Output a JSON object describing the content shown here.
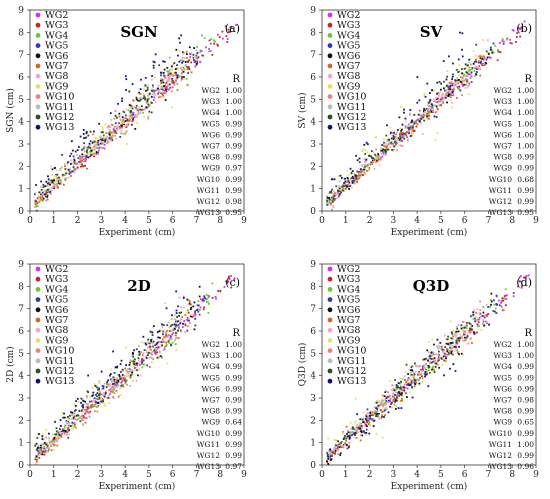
{
  "series_names": [
    "WG2",
    "WG3",
    "WG4",
    "WG5",
    "WG6",
    "WG7",
    "WG8",
    "WG9",
    "WG10",
    "WG11",
    "WG12",
    "WG13"
  ],
  "series_colors": [
    "#cc33ff",
    "#cc2222",
    "#66cc22",
    "#2a3aa8",
    "#111111",
    "#d2691e",
    "#f4a6c8",
    "#e6e066",
    "#f08080",
    "#bbbbbb",
    "#225522",
    "#141470"
  ],
  "r_header": "R",
  "chart_data": [
    {
      "type": "scatter",
      "title": "SGN",
      "panel_label": "(a)",
      "xlabel": "Experiment (cm)",
      "ylabel": "SGN (cm)",
      "xlim": [
        0,
        9
      ],
      "ylim": [
        0,
        9
      ],
      "xticks": [
        "0",
        "1",
        "2",
        "3",
        "4",
        "5",
        "6",
        "7",
        "8",
        "9"
      ],
      "yticks": [
        "0",
        "1",
        "2",
        "3",
        "4",
        "5",
        "6",
        "7",
        "8",
        "9"
      ],
      "r_values": [
        "1.00",
        "1.00",
        "1.00",
        "0.99",
        "0.99",
        "0.99",
        "0.99",
        "0.97",
        "0.99",
        "0.99",
        "0.98",
        "0.95"
      ],
      "series_params": [
        {
          "name": "WG2",
          "xmin": 0.2,
          "xmax": 8.7,
          "slope": 0.96,
          "offset": 0.1,
          "noise": 0.15
        },
        {
          "name": "WG3",
          "xmin": 0.2,
          "xmax": 8.5,
          "slope": 0.97,
          "offset": 0.0,
          "noise": 0.15
        },
        {
          "name": "WG4",
          "xmin": 0.2,
          "xmax": 7.8,
          "slope": 0.97,
          "offset": 0.1,
          "noise": 0.2
        },
        {
          "name": "WG5",
          "xmin": 0.2,
          "xmax": 7.5,
          "slope": 0.97,
          "offset": 0.2,
          "noise": 0.25
        },
        {
          "name": "WG6",
          "xmin": 0.2,
          "xmax": 7.2,
          "slope": 0.98,
          "offset": 0.2,
          "noise": 0.3
        },
        {
          "name": "WG7",
          "xmin": 0.2,
          "xmax": 7.0,
          "slope": 0.98,
          "offset": 0.1,
          "noise": 0.3
        },
        {
          "name": "WG8",
          "xmin": 0.2,
          "xmax": 7.0,
          "slope": 0.97,
          "offset": 0.2,
          "noise": 0.3
        },
        {
          "name": "WG9",
          "xmin": 0.2,
          "xmax": 6.8,
          "slope": 0.96,
          "offset": 0.3,
          "noise": 0.45
        },
        {
          "name": "WG10",
          "xmin": 0.2,
          "xmax": 6.8,
          "slope": 0.97,
          "offset": 0.2,
          "noise": 0.35
        },
        {
          "name": "WG11",
          "xmin": 0.2,
          "xmax": 6.5,
          "slope": 0.97,
          "offset": 0.3,
          "noise": 0.35
        },
        {
          "name": "WG12",
          "xmin": 0.2,
          "xmax": 6.5,
          "slope": 0.96,
          "offset": 0.4,
          "noise": 0.4
        },
        {
          "name": "WG13",
          "xmin": 0.2,
          "xmax": 6.5,
          "slope": 1.0,
          "offset": 0.8,
          "noise": 0.5
        }
      ]
    },
    {
      "type": "scatter",
      "title": "SV",
      "panel_label": "(b)",
      "xlabel": "Experiment (cm)",
      "ylabel": "SV (cm)",
      "xlim": [
        0,
        9
      ],
      "ylim": [
        0,
        9
      ],
      "xticks": [
        "0",
        "1",
        "2",
        "3",
        "4",
        "5",
        "6",
        "7",
        "8",
        "9"
      ],
      "yticks": [
        "0",
        "1",
        "2",
        "3",
        "4",
        "5",
        "6",
        "7",
        "8",
        "9"
      ],
      "r_values": [
        "1.00",
        "1.00",
        "1.00",
        "1.00",
        "1.00",
        "1.00",
        "0.99",
        "0.99",
        "0.68",
        "0.99",
        "0.99",
        "0.95"
      ],
      "series_params": [
        {
          "name": "WG2",
          "xmin": 0.2,
          "xmax": 8.7,
          "slope": 0.97,
          "offset": 0.1,
          "noise": 0.12
        },
        {
          "name": "WG3",
          "xmin": 0.2,
          "xmax": 8.5,
          "slope": 0.97,
          "offset": 0.0,
          "noise": 0.12
        },
        {
          "name": "WG4",
          "xmin": 0.2,
          "xmax": 7.8,
          "slope": 0.97,
          "offset": 0.1,
          "noise": 0.15
        },
        {
          "name": "WG5",
          "xmin": 0.2,
          "xmax": 7.5,
          "slope": 0.98,
          "offset": 0.1,
          "noise": 0.18
        },
        {
          "name": "WG6",
          "xmin": 0.2,
          "xmax": 7.2,
          "slope": 0.98,
          "offset": 0.1,
          "noise": 0.18
        },
        {
          "name": "WG7",
          "xmin": 0.2,
          "xmax": 7.0,
          "slope": 0.98,
          "offset": 0.1,
          "noise": 0.2
        },
        {
          "name": "WG8",
          "xmin": 0.2,
          "xmax": 7.0,
          "slope": 0.97,
          "offset": 0.2,
          "noise": 0.25
        },
        {
          "name": "WG9",
          "xmin": 0.2,
          "xmax": 6.8,
          "slope": 0.9,
          "offset": 0.5,
          "noise": 0.6
        },
        {
          "name": "WG10",
          "xmin": 0.2,
          "xmax": 6.8,
          "slope": 0.97,
          "offset": 0.2,
          "noise": 0.3
        },
        {
          "name": "WG11",
          "xmin": 0.2,
          "xmax": 6.5,
          "slope": 0.97,
          "offset": 0.2,
          "noise": 0.3
        },
        {
          "name": "WG12",
          "xmin": 0.2,
          "xmax": 6.5,
          "slope": 0.97,
          "offset": 0.3,
          "noise": 0.35
        },
        {
          "name": "WG13",
          "xmin": 0.2,
          "xmax": 6.5,
          "slope": 1.0,
          "offset": 0.7,
          "noise": 0.5
        }
      ]
    },
    {
      "type": "scatter",
      "title": "2D",
      "panel_label": "(c)",
      "xlabel": "Experiment (cm)",
      "ylabel": "2D (cm)",
      "xlim": [
        0,
        9
      ],
      "ylim": [
        0,
        9
      ],
      "xticks": [
        "0",
        "1",
        "2",
        "3",
        "4",
        "5",
        "6",
        "7",
        "8",
        "9"
      ],
      "yticks": [
        "0",
        "1",
        "2",
        "3",
        "4",
        "5",
        "6",
        "7",
        "8",
        "9"
      ],
      "r_values": [
        "1.00",
        "1.00",
        "0.99",
        "0.99",
        "0.99",
        "0.99",
        "0.99",
        "0.64",
        "0.99",
        "0.99",
        "0.99",
        "0.97"
      ],
      "series_params": [
        {
          "name": "WG2",
          "xmin": 0.2,
          "xmax": 8.7,
          "slope": 0.96,
          "offset": 0.1,
          "noise": 0.15
        },
        {
          "name": "WG3",
          "xmin": 0.2,
          "xmax": 8.5,
          "slope": 0.97,
          "offset": 0.0,
          "noise": 0.15
        },
        {
          "name": "WG4",
          "xmin": 0.2,
          "xmax": 7.8,
          "slope": 0.96,
          "offset": 0.1,
          "noise": 0.25
        },
        {
          "name": "WG5",
          "xmin": 0.2,
          "xmax": 7.5,
          "slope": 0.97,
          "offset": 0.2,
          "noise": 0.3
        },
        {
          "name": "WG6",
          "xmin": 0.2,
          "xmax": 7.2,
          "slope": 0.97,
          "offset": 0.2,
          "noise": 0.3
        },
        {
          "name": "WG7",
          "xmin": 0.2,
          "xmax": 7.0,
          "slope": 0.97,
          "offset": 0.1,
          "noise": 0.3
        },
        {
          "name": "WG8",
          "xmin": 0.2,
          "xmax": 7.0,
          "slope": 0.96,
          "offset": 0.2,
          "noise": 0.3
        },
        {
          "name": "WG9",
          "xmin": 0.2,
          "xmax": 6.8,
          "slope": 0.9,
          "offset": 0.5,
          "noise": 0.6
        },
        {
          "name": "WG10",
          "xmin": 0.2,
          "xmax": 6.8,
          "slope": 0.97,
          "offset": 0.2,
          "noise": 0.35
        },
        {
          "name": "WG11",
          "xmin": 0.2,
          "xmax": 6.5,
          "slope": 0.97,
          "offset": 0.3,
          "noise": 0.35
        },
        {
          "name": "WG12",
          "xmin": 0.2,
          "xmax": 6.5,
          "slope": 0.97,
          "offset": 0.4,
          "noise": 0.4
        },
        {
          "name": "WG13",
          "xmin": 0.2,
          "xmax": 6.5,
          "slope": 1.0,
          "offset": 0.7,
          "noise": 0.45
        }
      ]
    },
    {
      "type": "scatter",
      "title": "Q3D",
      "panel_label": "(d)",
      "xlabel": "Experiment (cm)",
      "ylabel": "Q3D (cm)",
      "xlim": [
        0,
        9
      ],
      "ylim": [
        0,
        9
      ],
      "xticks": [
        "0",
        "1",
        "2",
        "3",
        "4",
        "5",
        "6",
        "7",
        "8",
        "9"
      ],
      "yticks": [
        "0",
        "1",
        "2",
        "3",
        "4",
        "5",
        "6",
        "7",
        "8",
        "9"
      ],
      "r_values": [
        "1.00",
        "1.00",
        "0.99",
        "0.99",
        "0.99",
        "0.98",
        "0.99",
        "0.65",
        "0.99",
        "1.00",
        "0.99",
        "0.96"
      ],
      "series_params": [
        {
          "name": "WG2",
          "xmin": 0.2,
          "xmax": 8.7,
          "slope": 0.96,
          "offset": 0.1,
          "noise": 0.15
        },
        {
          "name": "WG3",
          "xmin": 0.2,
          "xmax": 8.5,
          "slope": 0.97,
          "offset": 0.0,
          "noise": 0.15
        },
        {
          "name": "WG4",
          "xmin": 0.2,
          "xmax": 7.8,
          "slope": 0.96,
          "offset": 0.1,
          "noise": 0.25
        },
        {
          "name": "WG5",
          "xmin": 0.2,
          "xmax": 7.5,
          "slope": 0.97,
          "offset": 0.1,
          "noise": 0.25
        },
        {
          "name": "WG6",
          "xmin": 0.2,
          "xmax": 7.2,
          "slope": 0.97,
          "offset": 0.0,
          "noise": 0.3
        },
        {
          "name": "WG7",
          "xmin": 0.2,
          "xmax": 7.0,
          "slope": 0.97,
          "offset": 0.1,
          "noise": 0.3
        },
        {
          "name": "WG8",
          "xmin": 0.2,
          "xmax": 7.0,
          "slope": 0.96,
          "offset": 0.2,
          "noise": 0.3
        },
        {
          "name": "WG9",
          "xmin": 0.2,
          "xmax": 6.8,
          "slope": 0.9,
          "offset": 0.4,
          "noise": 0.55
        },
        {
          "name": "WG10",
          "xmin": 0.2,
          "xmax": 6.8,
          "slope": 0.97,
          "offset": 0.2,
          "noise": 0.3
        },
        {
          "name": "WG11",
          "xmin": 0.2,
          "xmax": 6.5,
          "slope": 0.98,
          "offset": 0.2,
          "noise": 0.25
        },
        {
          "name": "WG12",
          "xmin": 0.2,
          "xmax": 6.5,
          "slope": 0.97,
          "offset": 0.3,
          "noise": 0.35
        },
        {
          "name": "WG13",
          "xmin": 0.2,
          "xmax": 6.5,
          "slope": 0.95,
          "offset": 0.1,
          "noise": 0.45
        }
      ]
    }
  ]
}
